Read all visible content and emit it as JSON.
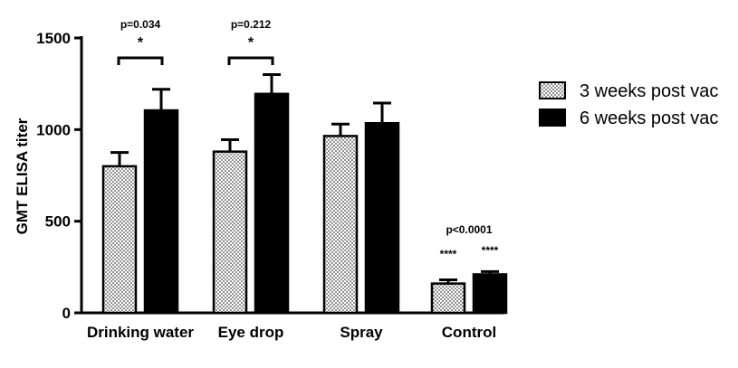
{
  "chart_data": {
    "type": "bar",
    "ylabel": "GMT ELISA titer",
    "ylim": [
      0,
      1500
    ],
    "yticks": [
      0,
      500,
      1000,
      1500
    ],
    "grid": false,
    "legend_position": "right",
    "categories": [
      "Drinking water",
      "Eye drop",
      "Spray",
      "Control"
    ],
    "series": [
      {
        "name": "3 weeks post vac",
        "fill": "dotted",
        "values": [
          800,
          880,
          965,
          160
        ],
        "errors": [
          75,
          65,
          65,
          20
        ]
      },
      {
        "name": "6 weeks post vac",
        "fill": "solid",
        "values": [
          1105,
          1195,
          1035,
          210
        ],
        "errors": [
          115,
          105,
          110,
          15
        ]
      }
    ],
    "annotations": [
      {
        "category": 0,
        "type": "bracket",
        "pvalue": "p=0.034",
        "stars": "*"
      },
      {
        "category": 1,
        "type": "bracket",
        "pvalue": "p=0.212",
        "stars": "*"
      },
      {
        "category": 3,
        "type": "label",
        "pvalue": "p<0.0001",
        "stars": [
          "****",
          "****"
        ]
      }
    ]
  }
}
